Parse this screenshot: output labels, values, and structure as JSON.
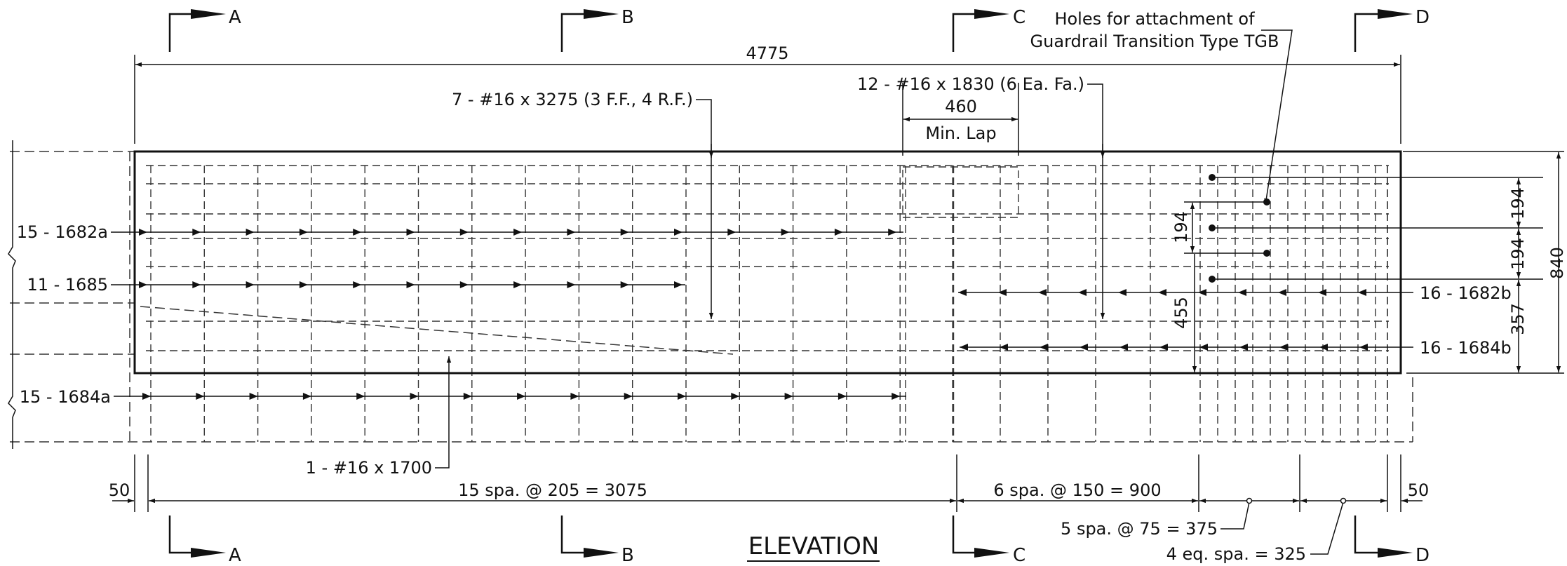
{
  "drawing": {
    "title": "ELEVATION",
    "section_markers": {
      "a": "A",
      "b": "B",
      "c": "C",
      "d": "D"
    },
    "dimensions": {
      "overall_length": "4775",
      "lap_length": "460",
      "lap_caption": "Min. Lap",
      "height_total": "840",
      "spacing_194_upper": "194",
      "spacing_194_lower": "194",
      "spacing_357": "357",
      "spacing_194_left": "194",
      "height_455": "455",
      "end_left": "50",
      "end_right": "50",
      "run_a": "15 spa. @ 205 = 3075",
      "run_b": "6 spa. @ 150 = 900",
      "run_c": "5 spa. @ 75 = 375",
      "run_d": "4 eq. spa. = 325"
    },
    "callouts": {
      "bars_top": "7 - #16 x 3275 (3 F.F., 4 R.F.)",
      "bars_lap": "12 - #16 x 1830 (6 Ea. Fa.)",
      "holes_line1": "Holes for attachment of",
      "holes_line2": "Guardrail Transition Type TGB",
      "bar_1682a": "15 - 1682a",
      "bar_1685": "11 - 1685",
      "bar_1684a": "15 - 1684a",
      "bar_1700": "1 - #16 x 1700",
      "bar_1682b": "16 - 1682b",
      "bar_1684b": "16 - 1684b"
    }
  }
}
